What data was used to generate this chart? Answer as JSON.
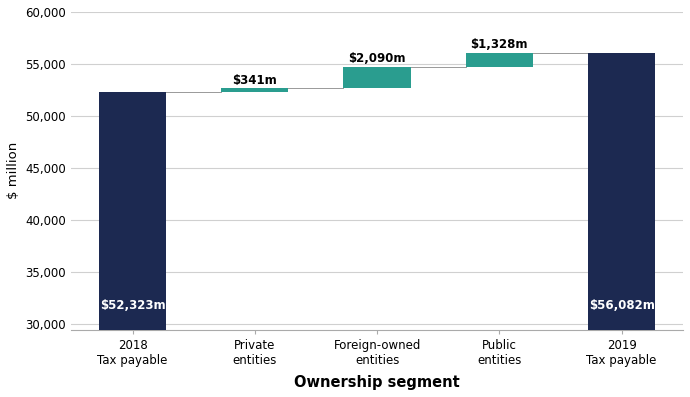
{
  "categories": [
    "2018\nTax payable",
    "Private\nentities",
    "Foreign-owned\nentities",
    "Public\nentities",
    "2019\nTax payable"
  ],
  "bar_bottoms": [
    0,
    52323,
    52664,
    54754,
    0
  ],
  "bar_heights": [
    52323,
    341,
    2090,
    1328,
    56082
  ],
  "bar_colors": [
    "#1c2951",
    "#2a9d8f",
    "#2a9d8f",
    "#2a9d8f",
    "#1c2951"
  ],
  "bar_labels": [
    "$52,323m",
    "$341m",
    "$2,090m",
    "$1,328m",
    "$56,082m"
  ],
  "label_colors": [
    "white",
    "black",
    "black",
    "black",
    "white"
  ],
  "label_inside": [
    true,
    false,
    false,
    false,
    true
  ],
  "label_y_inside": [
    31200,
    null,
    null,
    null,
    31200
  ],
  "label_y_above_offset": [
    null,
    150,
    150,
    150,
    null
  ],
  "xlabel": "Ownership segment",
  "ylabel": "$ million",
  "ylim": [
    29500,
    60000
  ],
  "yticks": [
    30000,
    35000,
    40000,
    45000,
    50000,
    55000,
    60000
  ],
  "ytick_labels": [
    "30,000",
    "35,000",
    "40,000",
    "45,000",
    "50,000",
    "55,000",
    "60,000"
  ],
  "grid_color": "#d0d0d0",
  "background_color": "#ffffff",
  "label_fontsize": 8.5,
  "axis_label_fontsize": 9.5,
  "tick_fontsize": 8.5,
  "xlabel_fontsize": 10.5,
  "bar_width": 0.55,
  "connector_color": "#999999",
  "connector_lw": 0.7
}
